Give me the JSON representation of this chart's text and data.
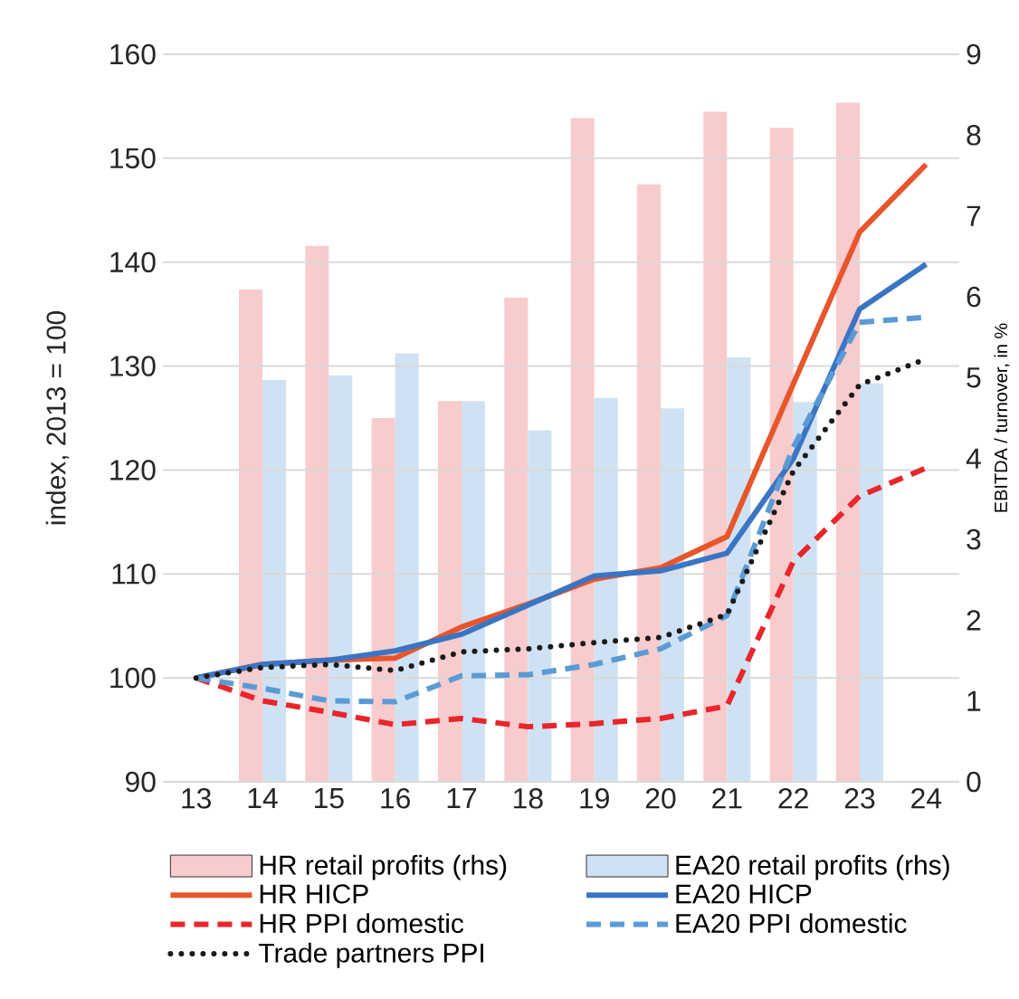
{
  "chart_data": {
    "type": "line",
    "ylabel": "index, 2013 = 100",
    "y2label": "EBITDA / turnover, in %",
    "categories": [
      "13",
      "14",
      "15",
      "16",
      "17",
      "18",
      "19",
      "20",
      "21",
      "22",
      "23",
      "24"
    ],
    "ylim": [
      90,
      160
    ],
    "yticks": [
      90,
      100,
      110,
      120,
      130,
      140,
      150,
      160
    ],
    "y2lim": [
      0,
      9
    ],
    "y2ticks": [
      0,
      1,
      2,
      3,
      4,
      5,
      6,
      7,
      8,
      9
    ],
    "grid": "y",
    "legend": "bottom",
    "series": [
      {
        "name": "HR retail profits (rhs)",
        "type": "bar",
        "axis": "y2",
        "color": "#f8cbcd",
        "values": [
          null,
          6.09,
          6.63,
          4.5,
          4.71,
          5.99,
          8.21,
          7.39,
          8.29,
          8.09,
          8.4,
          null
        ]
      },
      {
        "name": "EA20 retail profits (rhs)",
        "type": "bar",
        "axis": "y2",
        "color": "#cfe2f3",
        "values": [
          null,
          4.97,
          5.03,
          5.3,
          4.71,
          4.35,
          4.75,
          4.62,
          5.25,
          4.7,
          4.93,
          null
        ]
      },
      {
        "name": "HR HICP",
        "line_style": "solid",
        "color": "#e8552b",
        "values": [
          100,
          101.3,
          101.7,
          101.9,
          104.9,
          107.1,
          109.5,
          110.6,
          113.6,
          128.3,
          142.9,
          149.4
        ]
      },
      {
        "name": "EA20 HICP",
        "line_style": "solid",
        "color": "#3a75c4",
        "values": [
          100,
          101.3,
          101.7,
          102.6,
          104.2,
          107.0,
          109.8,
          110.3,
          112.0,
          121.1,
          135.5,
          139.8
        ]
      },
      {
        "name": "HR PPI domestic",
        "line_style": "dashed",
        "color": "#e8262b",
        "values": [
          100,
          97.8,
          96.7,
          95.5,
          96.1,
          95.3,
          95.6,
          96.1,
          97.3,
          111.2,
          117.5,
          120.2
        ]
      },
      {
        "name": "EA20 PPI domestic",
        "line_style": "dashed",
        "color": "#5b9bd5",
        "values": [
          100,
          99.0,
          97.8,
          97.7,
          100.2,
          100.3,
          101.3,
          102.8,
          106.0,
          122.2,
          134.2,
          134.7
        ]
      },
      {
        "name": "Trade partners PPI",
        "line_style": "dotted",
        "color": "#1a1a1a",
        "values": [
          100,
          101.0,
          101.3,
          100.7,
          102.5,
          102.8,
          103.4,
          103.9,
          106.1,
          119.9,
          128.2,
          130.7
        ]
      }
    ]
  }
}
